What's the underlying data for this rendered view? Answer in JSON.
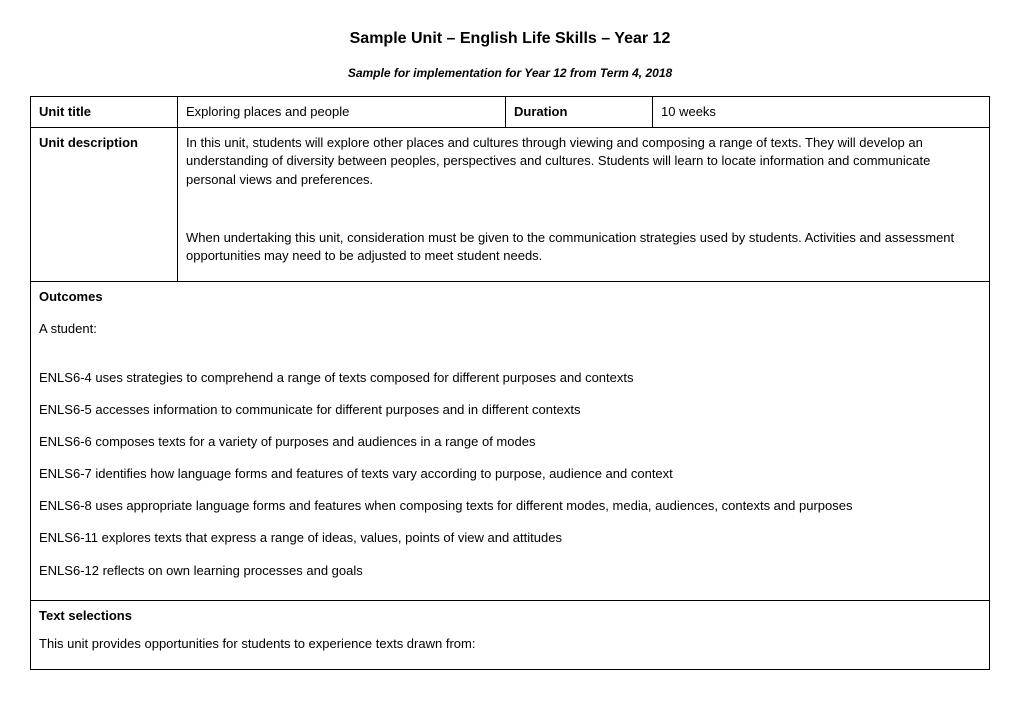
{
  "title": "Sample Unit – English Life Skills – Year 12",
  "subtitle": "Sample for implementation for Year 12 from Term 4, 2018",
  "row1": {
    "unit_title_label": "Unit title",
    "unit_title_value": "Exploring places and people",
    "duration_label": "Duration",
    "duration_value": "10 weeks"
  },
  "row2": {
    "label": "Unit description",
    "para1": "In this unit, students will explore other places and cultures through viewing and composing a range of texts. They will develop an understanding of diversity between peoples, perspectives and cultures. Students will learn to locate information and communicate personal views and preferences.",
    "para2": "When undertaking this unit, consideration must be given to the communication strategies used by students. Activities and assessment opportunities may need to be adjusted to meet student needs."
  },
  "outcomes": {
    "label": "Outcomes",
    "intro": "A student:",
    "items": [
      "ENLS6-4 uses strategies to comprehend a range of texts composed for different purposes and contexts",
      "ENLS6-5 accesses information to communicate for different purposes and in different contexts",
      "ENLS6-6 composes texts for a variety of purposes and audiences in a range of modes",
      "ENLS6-7 identifies how language forms and features of texts vary according to purpose, audience and context",
      "ENLS6-8 uses appropriate language forms and features when composing texts for different modes, media, audiences, contexts and purposes",
      "ENLS6-11 explores texts that express a range of ideas, values, points of view and attitudes",
      "ENLS6-12 reflects on own learning processes and goals"
    ]
  },
  "texts": {
    "label": "Text selections",
    "intro": "This unit provides opportunities for students to experience texts drawn from:"
  }
}
